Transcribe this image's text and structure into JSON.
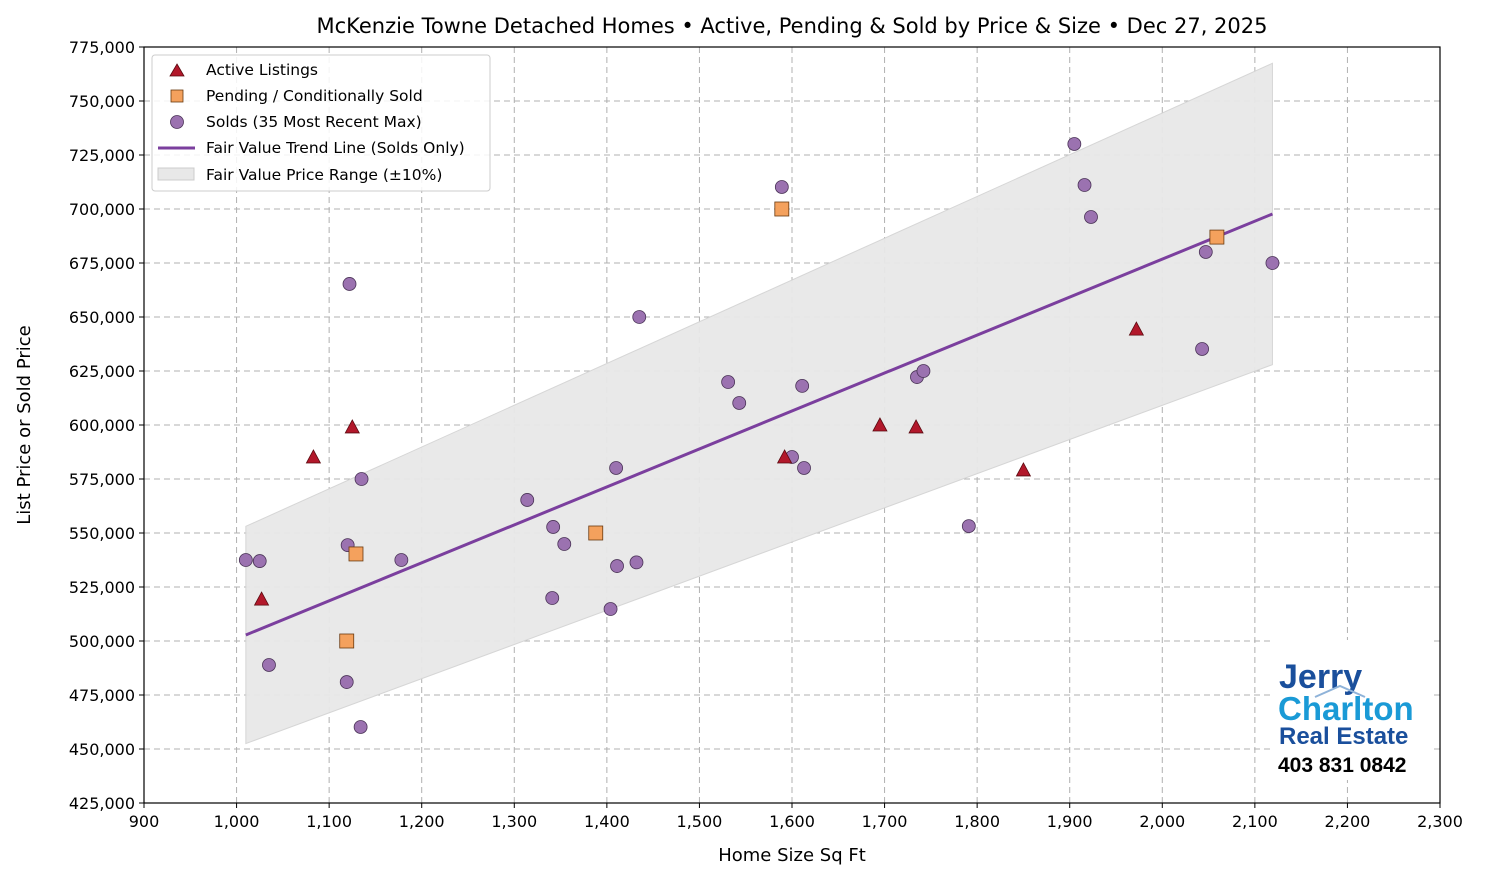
{
  "chart_data": {
    "type": "scatter",
    "title": "McKenzie Towne Detached Homes • Active, Pending & Sold by Price & Size • Dec 27, 2025",
    "xlabel": "Home Size Sq Ft",
    "ylabel": "List Price or Sold Price",
    "xlim": [
      900,
      2300
    ],
    "ylim": [
      425000,
      775000
    ],
    "xticks": [
      900,
      1000,
      1100,
      1200,
      1300,
      1400,
      1500,
      1600,
      1700,
      1800,
      1900,
      2000,
      2100,
      2200,
      2300
    ],
    "yticks": [
      425000,
      450000,
      475000,
      500000,
      525000,
      550000,
      575000,
      600000,
      625000,
      650000,
      675000,
      700000,
      725000,
      750000,
      775000
    ],
    "grid": true,
    "legend_placement": "top-left",
    "series": [
      {
        "name": "Active Listings",
        "marker": "triangle",
        "color": "#b2182b",
        "points": [
          [
            1027,
            519400
          ],
          [
            1083,
            585200
          ],
          [
            1125,
            599100
          ],
          [
            1592,
            585200
          ],
          [
            1695,
            600000
          ],
          [
            1734,
            599100
          ],
          [
            1850,
            579200
          ],
          [
            1972,
            644400
          ]
        ]
      },
      {
        "name": "Pending / Conditionally Sold",
        "marker": "square",
        "color": "#f4a15d",
        "points": [
          [
            1119,
            500000
          ],
          [
            1129,
            540300
          ],
          [
            1388,
            550000
          ],
          [
            1589,
            700000
          ],
          [
            2059,
            687000
          ]
        ]
      },
      {
        "name": "Solds (35 Most Recent Max)",
        "marker": "circle",
        "color": "#9b72b0",
        "points": [
          [
            1010,
            537500
          ],
          [
            1025,
            537000
          ],
          [
            1035,
            488900
          ],
          [
            1122,
            665300
          ],
          [
            1120,
            544400
          ],
          [
            1119,
            481000
          ],
          [
            1134,
            460200
          ],
          [
            1135,
            575000
          ],
          [
            1178,
            537500
          ],
          [
            1314,
            565300
          ],
          [
            1342,
            552800
          ],
          [
            1354,
            544900
          ],
          [
            1341,
            519900
          ],
          [
            1410,
            580100
          ],
          [
            1435,
            650000
          ],
          [
            1411,
            534700
          ],
          [
            1432,
            536400
          ],
          [
            1404,
            514800
          ],
          [
            1531,
            619900
          ],
          [
            1543,
            610200
          ],
          [
            1589,
            710200
          ],
          [
            1611,
            618100
          ],
          [
            1600,
            585200
          ],
          [
            1613,
            580100
          ],
          [
            1735,
            622200
          ],
          [
            1742,
            625000
          ],
          [
            1791,
            553200
          ],
          [
            1905,
            730100
          ],
          [
            1916,
            711100
          ],
          [
            1923,
            696300
          ],
          [
            2047,
            680100
          ],
          [
            2043,
            635200
          ],
          [
            2119,
            675000
          ]
        ]
      }
    ],
    "trend_line": {
      "name": "Fair Value Trend Line (Solds Only)",
      "color": "#7b3f9e",
      "from": [
        1010,
        502800
      ],
      "to": [
        2119,
        697700
      ]
    },
    "band": {
      "name": "Fair Value Price Range (±10%)",
      "color": "#e8e8e8",
      "pct": 10
    }
  },
  "logo": {
    "line1": "Jerry",
    "line2": "Charlton",
    "line3": "Real Estate",
    "phone": "403 831 0842",
    "colors": {
      "dark": "#1a4f9c",
      "light": "#1a9ad6"
    }
  }
}
